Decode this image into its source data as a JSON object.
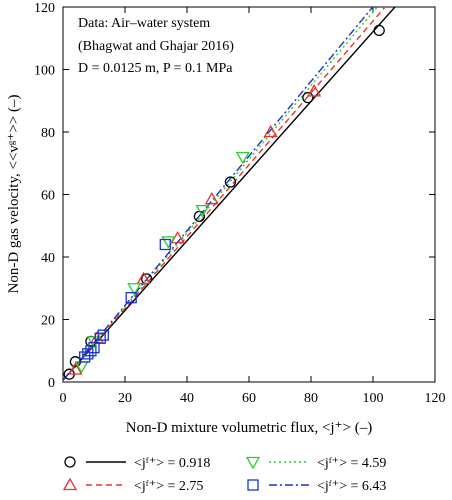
{
  "chart_data": {
    "type": "scatter",
    "xlabel": "Non-D mixture volumetric flux, <j⁺> (–)",
    "ylabel": "Non-D gas velocity, <<vᵍ⁺>> (–)",
    "xlim": [
      0,
      120
    ],
    "ylim": [
      0,
      120
    ],
    "xticks": [
      0,
      20,
      40,
      60,
      80,
      100,
      120
    ],
    "yticks": [
      0,
      20,
      40,
      60,
      80,
      100,
      120
    ],
    "annotations": [
      "Data: Air–water system",
      "(Bhagwat and Ghajar 2016)",
      "D = 0.0125 m, P = 0.1 MPa"
    ],
    "series": [
      {
        "name": "<jᶠ⁺> = 0.918",
        "marker": "circle",
        "line": "solid",
        "color": "#000000",
        "fit": [
          [
            0,
            0.6
          ],
          [
            120,
            134.4
          ]
        ],
        "x": [
          2,
          4,
          9,
          27,
          44,
          54,
          79,
          102
        ],
        "y": [
          2.5,
          6.5,
          13,
          33,
          53,
          64,
          91,
          112.5
        ]
      },
      {
        "name": "<jᶠ⁺> = 2.75",
        "marker": "triangle-up",
        "line": "dashed",
        "color": "#e8332f",
        "fit": [
          [
            0,
            0.5
          ],
          [
            120,
            138.5
          ]
        ],
        "x": [
          4,
          11,
          26,
          37,
          48,
          67,
          81
        ],
        "y": [
          4,
          14,
          33,
          46,
          58.5,
          80,
          93
        ]
      },
      {
        "name": "<jᶠ⁺> = 4.59",
        "marker": "triangle-down",
        "line": "dotted",
        "color": "#2ecc2e",
        "fit": [
          [
            0,
            0.5
          ],
          [
            120,
            142
          ]
        ],
        "x": [
          6,
          10,
          23,
          34,
          45,
          58
        ],
        "y": [
          5,
          13,
          30,
          45,
          55,
          72
        ]
      },
      {
        "name": "<jᶠ⁺> = 6.43",
        "marker": "square",
        "line": "dashdot",
        "color": "#1a33cc",
        "fit": [
          [
            0,
            0.6
          ],
          [
            120,
            144
          ]
        ],
        "x": [
          7,
          8,
          9,
          10,
          12,
          13,
          22,
          33
        ],
        "y": [
          8,
          9,
          10,
          11,
          14,
          15,
          27,
          44
        ]
      }
    ]
  }
}
